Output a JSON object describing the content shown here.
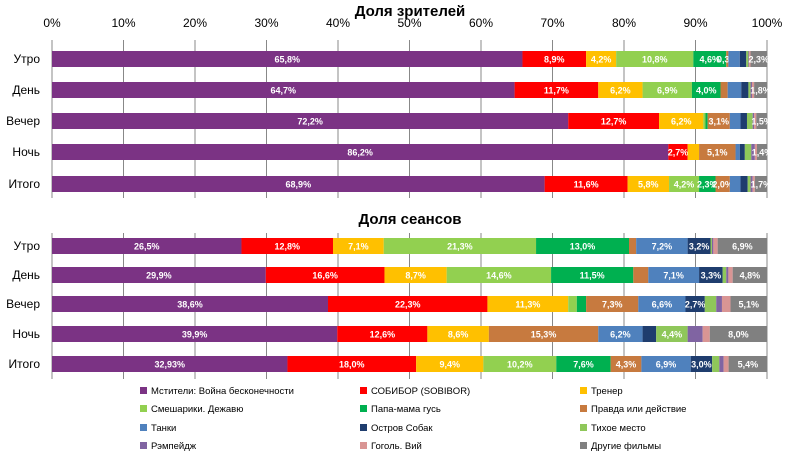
{
  "chart_data": [
    {
      "type": "bar",
      "stacked": "percent",
      "orientation": "horizontal",
      "title": "Доля зрителей",
      "xlim": [
        0,
        100
      ],
      "grid": true,
      "ticks": [
        "0%",
        "10%",
        "20%",
        "30%",
        "40%",
        "50%",
        "60%",
        "70%",
        "80%",
        "90%",
        "100%"
      ],
      "categories": [
        "Утро",
        "День",
        "Вечер",
        "Ночь",
        "Итого"
      ],
      "series": [
        {
          "name": "Мстители: Война бесконечности",
          "values": [
            65.8,
            64.7,
            72.2,
            86.2,
            68.9
          ],
          "labels": [
            "65,8%",
            "64,7%",
            "72,2%",
            "86,2%",
            "68,9%"
          ]
        },
        {
          "name": "СОБИБОР (SOBIBOR)",
          "values": [
            8.9,
            11.7,
            12.7,
            2.7,
            11.6
          ],
          "labels": [
            "8,9%",
            "11,7%",
            "12,7%",
            "2,7%",
            "11,6%"
          ]
        },
        {
          "name": "Тренер",
          "values": [
            4.2,
            6.2,
            6.2,
            1.6,
            5.8
          ],
          "labels": [
            "4,2%",
            "6,2%",
            "6,2%",
            "",
            "5,8%"
          ]
        },
        {
          "name": "Смешарики. Дежавю",
          "values": [
            10.8,
            6.9,
            0.3,
            0,
            4.2
          ],
          "labels": [
            "10,8%",
            "6,9%",
            "",
            "",
            "4,2%"
          ]
        },
        {
          "name": "Папа-мама гусь",
          "values": [
            4.6,
            4.0,
            0.3,
            0,
            2.3
          ],
          "labels": [
            "4,6%",
            "4,0%",
            "",
            "",
            "2,3%"
          ]
        },
        {
          "name": "Правда или действие",
          "values": [
            0.3,
            1.0,
            3.1,
            5.1,
            2.0
          ],
          "labels": [
            "0,3%",
            "",
            "3,1%",
            "5,1%",
            "2,0%"
          ]
        },
        {
          "name": "Танки",
          "values": [
            1.6,
            1.9,
            1.5,
            0.6,
            1.5
          ],
          "labels": [
            "",
            "",
            "",
            "",
            ""
          ]
        },
        {
          "name": "Остров Собак",
          "values": [
            0.9,
            1.0,
            0.9,
            0.7,
            1.0
          ],
          "labels": [
            "",
            "",
            "",
            "",
            ""
          ]
        },
        {
          "name": "Тихое место",
          "values": [
            0.3,
            0.3,
            0.8,
            0.9,
            0.4
          ],
          "labels": [
            "",
            "",
            "",
            "",
            ""
          ]
        },
        {
          "name": "Рэмпейдж",
          "values": [
            0.1,
            0.2,
            0.2,
            0.5,
            0.3
          ],
          "labels": [
            "",
            "",
            "",
            "",
            ""
          ]
        },
        {
          "name": "Гоголь. Вий",
          "values": [
            0.2,
            0.3,
            0.3,
            0.3,
            0.3
          ],
          "labels": [
            "",
            "",
            "",
            "",
            ""
          ]
        },
        {
          "name": "Другие фильмы",
          "values": [
            2.3,
            1.8,
            1.5,
            1.4,
            1.7
          ],
          "labels": [
            "2,3%",
            "1,8%",
            "1,5%",
            "1,4%",
            "1,7%"
          ]
        }
      ]
    },
    {
      "type": "bar",
      "stacked": "percent",
      "orientation": "horizontal",
      "title": "Доля сеансов",
      "xlim": [
        0,
        100
      ],
      "grid": true,
      "categories": [
        "Утро",
        "День",
        "Вечер",
        "Ночь",
        "Итого"
      ],
      "series": [
        {
          "name": "Мстители: Война бесконечности",
          "values": [
            26.5,
            29.9,
            38.6,
            39.9,
            32.93
          ],
          "labels": [
            "26,5%",
            "29,9%",
            "38,6%",
            "39,9%",
            "32,93%"
          ]
        },
        {
          "name": "СОБИБОР (SOBIBOR)",
          "values": [
            12.8,
            16.6,
            22.3,
            12.6,
            18.0
          ],
          "labels": [
            "12,8%",
            "16,6%",
            "22,3%",
            "12,6%",
            "18,0%"
          ]
        },
        {
          "name": "Тренер",
          "values": [
            7.1,
            8.7,
            11.3,
            8.6,
            9.4
          ],
          "labels": [
            "7,1%",
            "8,7%",
            "11,3%",
            "8,6%",
            "9,4%"
          ]
        },
        {
          "name": "Смешарики. Дежавю",
          "values": [
            21.3,
            14.6,
            1.2,
            0,
            10.2
          ],
          "labels": [
            "21,3%",
            "14,6%",
            "",
            "",
            "10,2%"
          ]
        },
        {
          "name": "Папа-мама гусь",
          "values": [
            13.0,
            11.5,
            1.3,
            0,
            7.6
          ],
          "labels": [
            "13,0%",
            "11,5%",
            "",
            "",
            "7,6%"
          ]
        },
        {
          "name": "Правда или действие",
          "values": [
            1.0,
            2.1,
            7.3,
            15.3,
            4.3
          ],
          "labels": [
            "",
            "",
            "7,3%",
            "15,3%",
            "4,3%"
          ]
        },
        {
          "name": "Танки",
          "values": [
            7.2,
            7.1,
            6.6,
            6.2,
            6.9
          ],
          "labels": [
            "7,2%",
            "7,1%",
            "6,6%",
            "6,2%",
            "6,9%"
          ]
        },
        {
          "name": "Остров Собак",
          "values": [
            3.2,
            3.3,
            2.7,
            1.9,
            3.0
          ],
          "labels": [
            "3,2%",
            "3,3%",
            "2,7%",
            "",
            "3,0%"
          ]
        },
        {
          "name": "Тихое место",
          "values": [
            0.2,
            0.5,
            1.6,
            4.4,
            1.0
          ],
          "labels": [
            "",
            "",
            "",
            "4,4%",
            ""
          ]
        },
        {
          "name": "Рэмпейдж",
          "values": [
            0.2,
            0.3,
            0.8,
            2.1,
            0.6
          ],
          "labels": [
            "",
            "",
            "",
            "",
            ""
          ]
        },
        {
          "name": "Гоголь. Вий",
          "values": [
            0.6,
            0.6,
            1.2,
            1.0,
            0.7
          ],
          "labels": [
            "",
            "",
            "",
            "",
            ""
          ]
        },
        {
          "name": "Другие фильмы",
          "values": [
            6.9,
            4.8,
            5.1,
            8.0,
            5.4
          ],
          "labels": [
            "6,9%",
            "4,8%",
            "5,1%",
            "8,0%",
            "5,4%"
          ]
        }
      ]
    }
  ],
  "colors": [
    "#7B3384",
    "#FF0000",
    "#FFC000",
    "#92D050",
    "#00B050",
    "#C77A3F",
    "#4F81BD",
    "#1F3D6E",
    "#8FC75A",
    "#8064A2",
    "#D99594",
    "#808080"
  ]
}
